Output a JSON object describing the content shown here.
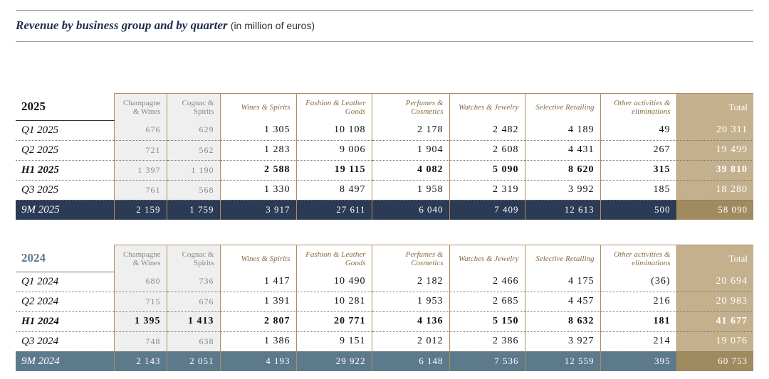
{
  "title": {
    "main": "Revenue by business group and by quarter",
    "unit": "(in million of euros)"
  },
  "tables": [
    {
      "year": "2025",
      "columns": [
        "Champagne & Wines",
        "Cognac & Spirits",
        "Wines & Spirits",
        "Fashion & Leather Goods",
        "Perfumes & Cosmetics",
        "Watches & Jewelry",
        "Selective Retailing",
        "Other activities & eliminations",
        "Total"
      ],
      "rows": [
        {
          "label": "Q1 2025",
          "cells": [
            "676",
            "629",
            "1 305",
            "10 108",
            "2 178",
            "2 482",
            "4 189",
            "49",
            "20 311"
          ]
        },
        {
          "label": "Q2 2025",
          "cells": [
            "721",
            "562",
            "1 283",
            "9 006",
            "1 904",
            "2 608",
            "4 431",
            "267",
            "19 499"
          ]
        },
        {
          "label": "H1 2025",
          "cells": [
            "1 397",
            "1 190",
            "2 588",
            "19 115",
            "4 082",
            "5 090",
            "8 620",
            "315",
            "39 810"
          ]
        },
        {
          "label": "Q3 2025",
          "cells": [
            "761",
            "568",
            "1 330",
            "8 497",
            "1 958",
            "2 319",
            "3 992",
            "185",
            "18 280"
          ]
        },
        {
          "label": "9M 2025",
          "cells": [
            "2 159",
            "1 759",
            "3 917",
            "27 611",
            "6 040",
            "7 409",
            "12 613",
            "500",
            "58 090"
          ]
        }
      ]
    },
    {
      "year": "2024",
      "columns": [
        "Champagne & Wines",
        "Cognac & Spirits",
        "Wines & Spirits",
        "Fashion & Leather Goods",
        "Perfumes & Cosmetics",
        "Watches & Jewelry",
        "Selective Retailing",
        "Other activities & eliminations",
        "Total"
      ],
      "rows": [
        {
          "label": "Q1 2024",
          "cells": [
            "680",
            "736",
            "1 417",
            "10 490",
            "2 182",
            "2 466",
            "4 175",
            "(36)",
            "20 694"
          ]
        },
        {
          "label": "Q2 2024",
          "cells": [
            "715",
            "676",
            "1 391",
            "10 281",
            "1 953",
            "2 685",
            "4 457",
            "216",
            "20 983"
          ]
        },
        {
          "label": "H1 2024",
          "cells": [
            "1 395",
            "1 413",
            "2 807",
            "20 771",
            "4 136",
            "5 150",
            "8 632",
            "181",
            "41 677"
          ]
        },
        {
          "label": "Q3 2024",
          "cells": [
            "748",
            "638",
            "1 386",
            "9 151",
            "2 012",
            "2 386",
            "3 927",
            "214",
            "19 076"
          ]
        },
        {
          "label": "9M 2024",
          "cells": [
            "2 143",
            "2 051",
            "4 193",
            "29 922",
            "6 148",
            "7 536",
            "12 559",
            "395",
            "60 753"
          ]
        }
      ]
    }
  ]
}
